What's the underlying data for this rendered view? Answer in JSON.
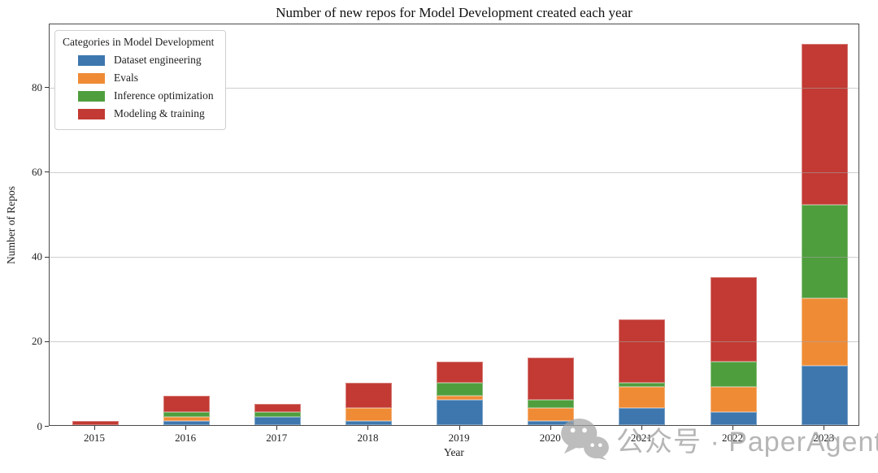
{
  "title": "Number of new repos for Model Development created each year",
  "chart_data": {
    "type": "bar",
    "stacked": true,
    "title": "Number of new repos for Model Development created each year",
    "xlabel": "Year",
    "ylabel": "Number of Repos",
    "categories": [
      "2015",
      "2016",
      "2017",
      "2018",
      "2019",
      "2020",
      "2021",
      "2022",
      "2023"
    ],
    "series": [
      {
        "name": "Dataset engineering",
        "color": "#3d77ae",
        "values": [
          0,
          1,
          2,
          1,
          6,
          1,
          4,
          3,
          14
        ]
      },
      {
        "name": "Evals",
        "color": "#ef8b35",
        "values": [
          0,
          1,
          0,
          3,
          1,
          3,
          5,
          6,
          16
        ]
      },
      {
        "name": "Inference optimization",
        "color": "#4f9e3d",
        "values": [
          0,
          1,
          1,
          0,
          3,
          2,
          1,
          6,
          22
        ]
      },
      {
        "name": "Modeling & training",
        "color": "#c23a33",
        "values": [
          1,
          4,
          2,
          6,
          5,
          10,
          15,
          20,
          38
        ]
      }
    ],
    "totals": [
      1,
      7,
      5,
      10,
      15,
      16,
      25,
      35,
      90
    ],
    "ylim": [
      0,
      95
    ],
    "yticks": [
      0,
      20,
      40,
      60,
      80
    ],
    "grid": "horizontal-only",
    "legend": {
      "title": "Categories in Model Development",
      "position": "upper-left"
    }
  },
  "watermark": {
    "icon": "wechat-icon",
    "text": "公众号 · PaperAgent",
    "color": "#9b9b9b"
  }
}
